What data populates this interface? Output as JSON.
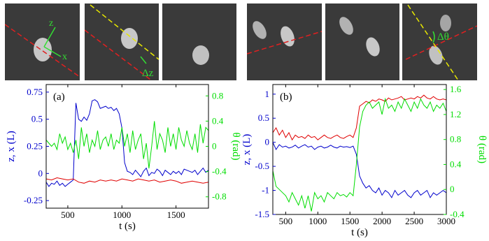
{
  "thumbnails": {
    "left": [
      {
        "labels": [
          "z",
          "x"
        ]
      },
      {
        "labels": [
          "Δz"
        ]
      },
      {
        "labels": []
      }
    ],
    "right": [
      {
        "labels": []
      },
      {
        "labels": []
      },
      {
        "labels": [
          "Δθ"
        ]
      }
    ]
  },
  "chart_data": [
    {
      "type": "line",
      "panel_label": "(a)",
      "xlabel": "t (s)",
      "ylabel_left": "z, x (L)",
      "ylabel_right": "θ (rad)",
      "xlim": [
        300,
        1800
      ],
      "ylim_left": [
        -0.32,
        0.82
      ],
      "ylim_right": [
        -0.98,
        0.98
      ],
      "xticks": [
        500,
        1000,
        1500
      ],
      "yticks_left": [
        -0.25,
        0,
        0.25,
        0.5,
        0.75
      ],
      "yticks_left_labels": [
        "-0.25",
        "0",
        "0.25",
        "0.5",
        "0.75"
      ],
      "yticks_right": [
        -0.8,
        -0.4,
        0,
        0.4,
        0.8
      ],
      "yticks_right_labels": [
        "-0.8",
        "-0.4",
        "0",
        "0.4",
        "0.8"
      ],
      "colors": {
        "z": "#0000cc",
        "x": "#e00000",
        "theta": "#00dd00"
      },
      "series": [
        {
          "key": "z",
          "axis": "left",
          "color": "#0000cc",
          "x": [
            300,
            325,
            350,
            375,
            400,
            425,
            450,
            475,
            500,
            525,
            550,
            575,
            600,
            625,
            650,
            675,
            700,
            725,
            750,
            775,
            800,
            825,
            850,
            875,
            900,
            925,
            950,
            975,
            1000,
            1025,
            1050,
            1075,
            1100,
            1125,
            1150,
            1175,
            1200,
            1225,
            1250,
            1275,
            1300,
            1325,
            1350,
            1375,
            1400,
            1425,
            1450,
            1475,
            1500,
            1525,
            1550,
            1575,
            1600,
            1625,
            1650,
            1675,
            1700,
            1725,
            1750,
            1775,
            1800
          ],
          "y": [
            -0.08,
            -0.12,
            -0.09,
            -0.1,
            -0.07,
            -0.11,
            -0.09,
            -0.12,
            -0.1,
            -0.08,
            -0.06,
            0.65,
            0.5,
            0.48,
            0.52,
            0.49,
            0.55,
            0.67,
            0.68,
            0.66,
            0.6,
            0.61,
            0.62,
            0.6,
            0.61,
            0.58,
            0.6,
            0.55,
            0.42,
            0.1,
            0.02,
            0.01,
            -0.01,
            0.03,
            0.0,
            -0.03,
            0.02,
            0.05,
            -0.02,
            0.01,
            0.0,
            0.04,
            0.02,
            -0.02,
            0.03,
            0.01,
            -0.01,
            0.02,
            0.0,
            0.02,
            -0.01,
            0.04,
            0.03,
            0.02,
            0.01,
            0.03,
            -0.01,
            0.02,
            0.05,
            0.01,
            0.03
          ]
        },
        {
          "key": "x",
          "axis": "left",
          "color": "#e00000",
          "x": [
            300,
            350,
            400,
            450,
            500,
            550,
            600,
            650,
            700,
            750,
            800,
            850,
            900,
            950,
            1000,
            1050,
            1100,
            1150,
            1200,
            1250,
            1300,
            1350,
            1400,
            1450,
            1500,
            1550,
            1600,
            1650,
            1700,
            1750,
            1800
          ],
          "y": [
            -0.05,
            -0.06,
            -0.04,
            -0.05,
            -0.06,
            -0.05,
            -0.08,
            -0.09,
            -0.07,
            -0.08,
            -0.06,
            -0.07,
            -0.06,
            -0.07,
            -0.05,
            -0.06,
            -0.07,
            -0.05,
            -0.06,
            -0.07,
            -0.06,
            -0.08,
            -0.07,
            -0.06,
            -0.07,
            -0.09,
            -0.08,
            -0.07,
            -0.08,
            -0.09,
            -0.08
          ]
        },
        {
          "key": "theta",
          "axis": "right",
          "color": "#00dd00",
          "x": [
            300,
            325,
            350,
            375,
            400,
            425,
            450,
            475,
            500,
            525,
            550,
            575,
            600,
            625,
            650,
            675,
            700,
            725,
            750,
            775,
            800,
            825,
            850,
            875,
            900,
            925,
            950,
            975,
            1000,
            1025,
            1050,
            1075,
            1100,
            1125,
            1150,
            1175,
            1200,
            1225,
            1250,
            1275,
            1300,
            1325,
            1350,
            1375,
            1400,
            1425,
            1450,
            1475,
            1500,
            1525,
            1550,
            1575,
            1600,
            1625,
            1650,
            1675,
            1700,
            1725,
            1750,
            1775,
            1800
          ],
          "y": [
            0.1,
            0.05,
            0.0,
            0.05,
            -0.05,
            0.2,
            0.05,
            0.15,
            -0.05,
            0.05,
            -0.1,
            0.1,
            -0.2,
            0.3,
            0.0,
            0.2,
            -0.1,
            0.1,
            0.0,
            0.25,
            -0.05,
            0.1,
            0.15,
            0.0,
            0.2,
            -0.05,
            0.1,
            0.05,
            0.3,
            0.0,
            0.2,
            -0.1,
            0.25,
            -0.05,
            0.1,
            0.2,
            -0.2,
            0.05,
            -0.35,
            0.0,
            0.4,
            -0.05,
            0.2,
            0.1,
            -0.1,
            0.3,
            0.0,
            0.2,
            -0.05,
            0.3,
            0.1,
            0.0,
            0.25,
            0.05,
            -0.05,
            0.2,
            -0.1,
            0.35,
            0.05,
            0.3,
            0.25
          ]
        }
      ]
    },
    {
      "type": "line",
      "panel_label": "(b)",
      "xlabel": "t (s)",
      "ylabel_left": "z, x (L)",
      "ylabel_right": "θ (rad)",
      "xlim": [
        300,
        3000
      ],
      "ylim_left": [
        -1.5,
        1.2
      ],
      "ylim_right": [
        -0.4,
        1.68
      ],
      "xticks": [
        500,
        1000,
        1500,
        2000,
        2500,
        3000
      ],
      "yticks_left": [
        -1.5,
        -1,
        -0.5,
        0,
        0.5,
        1
      ],
      "yticks_left_labels": [
        "-1.5",
        "-1",
        "-0.5",
        "0",
        "0.5",
        "1"
      ],
      "yticks_right": [
        -0.4,
        0,
        0.4,
        0.8,
        1.2,
        1.6
      ],
      "yticks_right_labels": [
        "-0.4",
        "0",
        "0.4",
        "0.8",
        "1.2",
        "1.6"
      ],
      "colors": {
        "z": "#0000cc",
        "x": "#e00000",
        "theta": "#00dd00"
      },
      "series": [
        {
          "key": "z",
          "axis": "left",
          "color": "#0000cc",
          "x": [
            300,
            350,
            400,
            450,
            500,
            550,
            600,
            650,
            700,
            750,
            800,
            850,
            900,
            950,
            1000,
            1050,
            1100,
            1150,
            1200,
            1250,
            1300,
            1350,
            1400,
            1450,
            1500,
            1550,
            1600,
            1650,
            1700,
            1750,
            1800,
            1850,
            1900,
            1950,
            2000,
            2050,
            2100,
            2150,
            2200,
            2250,
            2300,
            2350,
            2400,
            2450,
            2500,
            2550,
            2600,
            2650,
            2700,
            2750,
            2800,
            2850,
            2900,
            2950,
            3000
          ],
          "y": [
            0.0,
            -0.15,
            -0.05,
            -0.1,
            -0.08,
            -0.12,
            -0.1,
            -0.06,
            -0.12,
            -0.08,
            -0.05,
            -0.1,
            -0.08,
            -0.15,
            -0.1,
            -0.08,
            -0.12,
            -0.1,
            -0.06,
            -0.1,
            -0.12,
            -0.08,
            -0.1,
            -0.09,
            -0.11,
            -0.08,
            -0.25,
            -0.7,
            -0.85,
            -0.95,
            -0.9,
            -1.0,
            -1.05,
            -0.95,
            -1.1,
            -1.0,
            -1.05,
            -1.15,
            -1.0,
            -1.1,
            -1.05,
            -1.0,
            -1.1,
            -1.15,
            -1.05,
            -1.0,
            -1.1,
            -1.05,
            -1.0,
            -1.15,
            -1.05,
            -1.1,
            -1.05,
            -1.0,
            -1.05
          ]
        },
        {
          "key": "x",
          "axis": "left",
          "color": "#e00000",
          "x": [
            300,
            350,
            400,
            450,
            500,
            550,
            600,
            650,
            700,
            750,
            800,
            850,
            900,
            950,
            1000,
            1050,
            1100,
            1150,
            1200,
            1250,
            1300,
            1350,
            1400,
            1450,
            1500,
            1550,
            1600,
            1650,
            1700,
            1750,
            1800,
            1850,
            1900,
            1950,
            2000,
            2050,
            2100,
            2150,
            2200,
            2250,
            2300,
            2350,
            2400,
            2450,
            2500,
            2550,
            2600,
            2650,
            2700,
            2750,
            2800,
            2850,
            2900,
            2950,
            3000
          ],
          "y": [
            0.2,
            0.3,
            0.15,
            0.25,
            0.1,
            0.2,
            0.05,
            0.15,
            0.1,
            0.12,
            0.08,
            0.15,
            0.1,
            0.12,
            0.05,
            0.1,
            0.15,
            0.1,
            0.08,
            0.12,
            0.15,
            0.1,
            0.08,
            0.12,
            0.15,
            0.1,
            0.3,
            0.75,
            0.8,
            0.85,
            0.82,
            0.88,
            0.85,
            0.9,
            0.88,
            0.85,
            0.92,
            0.88,
            0.9,
            0.92,
            0.95,
            0.88,
            0.9,
            0.92,
            0.9,
            0.95,
            0.92,
            0.98,
            0.92,
            0.9,
            0.95,
            0.9,
            0.88,
            0.9,
            0.88
          ]
        },
        {
          "key": "theta",
          "axis": "right",
          "color": "#00dd00",
          "x": [
            300,
            350,
            400,
            450,
            500,
            550,
            600,
            650,
            700,
            750,
            800,
            850,
            900,
            950,
            1000,
            1050,
            1100,
            1150,
            1200,
            1250,
            1300,
            1350,
            1400,
            1450,
            1500,
            1550,
            1600,
            1650,
            1700,
            1750,
            1800,
            1850,
            1900,
            1950,
            2000,
            2050,
            2100,
            2150,
            2200,
            2250,
            2300,
            2350,
            2400,
            2450,
            2500,
            2550,
            2600,
            2650,
            2700,
            2750,
            2800,
            2850,
            2900,
            2950,
            3000
          ],
          "y": [
            0.3,
            0.05,
            0.0,
            -0.05,
            -0.1,
            -0.2,
            -0.05,
            -0.15,
            -0.25,
            -0.1,
            -0.3,
            -0.1,
            -0.35,
            -0.05,
            -0.15,
            -0.1,
            -0.2,
            -0.05,
            -0.1,
            -0.15,
            -0.05,
            -0.1,
            -0.08,
            -0.12,
            -0.05,
            -0.1,
            0.4,
            1.0,
            1.25,
            1.35,
            1.4,
            1.3,
            1.35,
            1.4,
            1.2,
            1.45,
            1.3,
            1.35,
            1.25,
            1.4,
            1.3,
            1.45,
            1.35,
            1.25,
            1.4,
            1.3,
            1.45,
            1.35,
            1.3,
            1.4,
            1.25,
            1.35,
            1.3,
            1.38,
            1.25
          ]
        }
      ]
    }
  ]
}
